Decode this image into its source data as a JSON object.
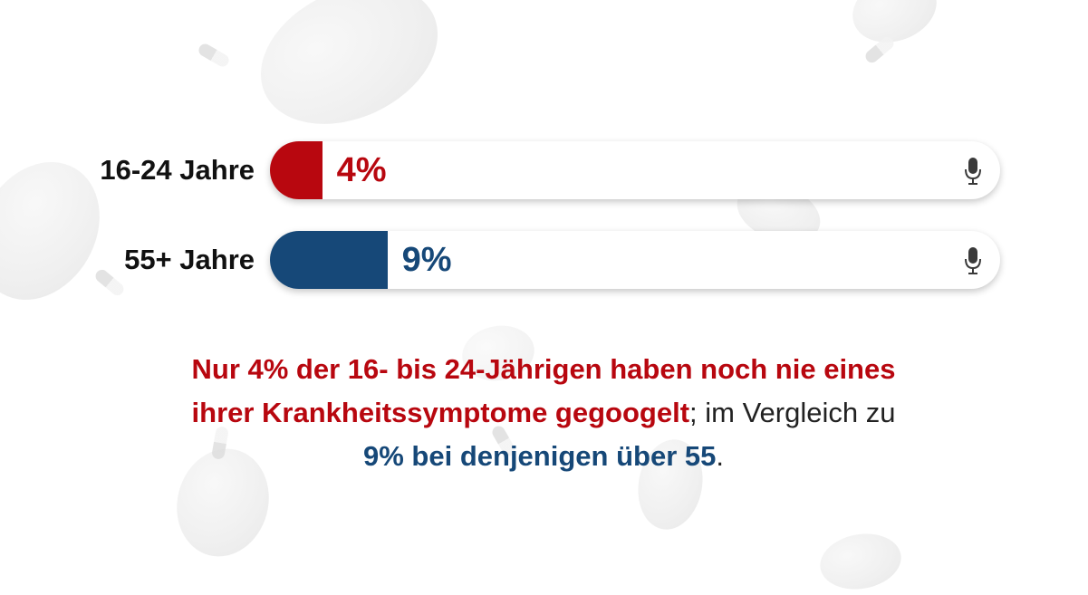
{
  "colors": {
    "young": "#b8070f",
    "old": "#164878",
    "text": "#222222"
  },
  "chart_data": {
    "type": "bar",
    "orientation": "horizontal",
    "categories": [
      "16-24 Jahre",
      "55+ Jahre"
    ],
    "values": [
      4,
      9
    ],
    "value_labels": [
      "4%",
      "9%"
    ],
    "unit": "%",
    "grid": false,
    "legend": "none"
  },
  "rows": [
    {
      "label": "16-24 Jahre",
      "value": 4,
      "value_label": "4%",
      "color": "#b8070f",
      "icon": "microphone-icon"
    },
    {
      "label": "55+ Jahre",
      "value": 9,
      "value_label": "9%",
      "color": "#164878",
      "icon": "microphone-icon"
    }
  ],
  "caption": {
    "line1": "Nur 4% der 16- bis 24-Jährigen haben noch nie eines",
    "line2_bold": "ihrer Krankheitssymptome gegoogelt",
    "line2_rest": "; im Vergleich zu",
    "line3_bold": "9% bei denjenigen über 55",
    "line3_rest": "."
  }
}
